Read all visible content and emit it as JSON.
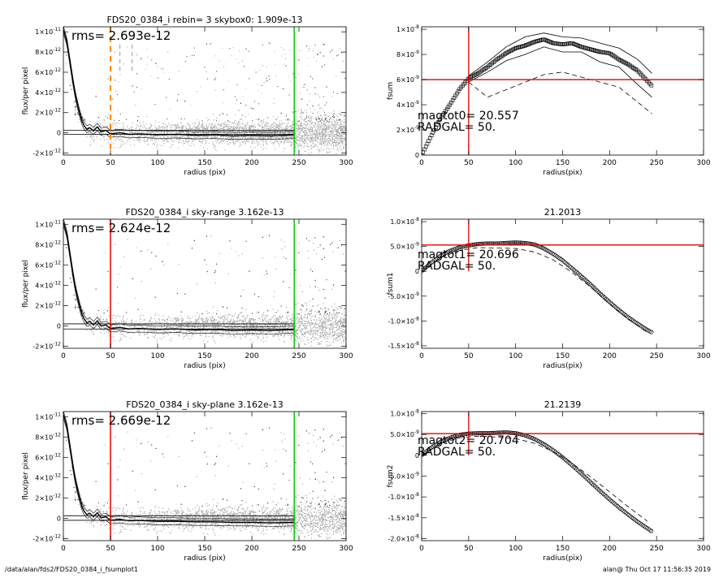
{
  "footer": {
    "left": "/data/alan/fds2/FDS20_0384_i_fsumplot1",
    "right": "alan@  Thu Oct 17 11:56:35 2019"
  },
  "colors": {
    "scatter": "#a8a8a8",
    "profile": "#000000",
    "radius_line": "#e00000",
    "orange_marker": "#ff8c00",
    "green_line": "#00c800",
    "red_line": "#e00000"
  },
  "chart_data": [
    {
      "type": "scatter",
      "title": "FDS20_0384_i rebin= 3    skybox0:  1.909e-13",
      "xlabel": "radius (pix)",
      "ylabel": "flux/per pixel",
      "xlim": [
        0,
        300
      ],
      "ylim": [
        -2.2e-12,
        1.05e-11
      ],
      "xticks": [
        0,
        50,
        100,
        150,
        200,
        250,
        300
      ],
      "yticks": [
        -2e-12,
        0,
        2e-12,
        4e-12,
        6e-12,
        8e-12,
        1e-11
      ],
      "ytick_labels": [
        [
          "-2×10",
          "-12"
        ],
        [
          "0",
          ""
        ],
        [
          "2×10",
          "-12"
        ],
        [
          "4×10",
          "-12"
        ],
        [
          "6×10",
          "-12"
        ],
        [
          "8×10",
          "-12"
        ],
        [
          "1×10",
          "-11"
        ]
      ],
      "annotation": "rms= 2.693e-12",
      "radius_line": {
        "x": 50,
        "style": "dashed-orange"
      },
      "green_line_x": 245,
      "gray_dashed_x": [
        60,
        73
      ],
      "hlines": [
        2.5e-13,
        -1.5e-13
      ],
      "profile": {
        "x": [
          0,
          2,
          4,
          6,
          8,
          10,
          12,
          14,
          16,
          18,
          20,
          22,
          25,
          28,
          32,
          36,
          40,
          45,
          50,
          60,
          70,
          80,
          100,
          120,
          140,
          160,
          180,
          200,
          220,
          245
        ],
        "y": [
          1.02e-11,
          9.6e-12,
          8.9e-12,
          7.6e-12,
          6.4e-12,
          5.2e-12,
          4.1e-12,
          3.2e-12,
          2.4e-12,
          1.7e-12,
          1.1e-12,
          7e-13,
          3.5e-13,
          5e-13,
          2e-13,
          6e-13,
          1e-13,
          2.5e-13,
          -1e-13,
          0.0,
          -1.5e-13,
          -1e-13,
          -2e-13,
          -1.5e-13,
          -2.5e-13,
          -2e-13,
          -3e-13,
          -2.5e-13,
          -3e-13,
          -2e-13
        ]
      }
    },
    {
      "type": "line",
      "title": "",
      "xlabel": "radius(pix)",
      "ylabel": "fsum",
      "xlim": [
        0,
        300
      ],
      "ylim": [
        0,
        1.02e-08
      ],
      "xticks": [
        0,
        50,
        100,
        150,
        200,
        250,
        300
      ],
      "yticks": [
        0,
        2e-09,
        4e-09,
        6e-09,
        8e-09,
        1e-08
      ],
      "ytick_labels": [
        [
          "0",
          ""
        ],
        [
          "2×10",
          "-9"
        ],
        [
          "4×10",
          "-9"
        ],
        [
          "6×10",
          "-9"
        ],
        [
          "8×10",
          "-9"
        ],
        [
          "1×10",
          "-8"
        ]
      ],
      "annotations": [
        "magtot0=  20.557",
        "RADGAL=      50."
      ],
      "cross": {
        "x": 50,
        "y": 6e-09
      },
      "series": [
        {
          "style": "squares",
          "x": [
            0,
            10,
            20,
            30,
            40,
            50,
            60,
            70,
            80,
            90,
            100,
            110,
            120,
            130,
            140,
            150,
            160,
            170,
            180,
            190,
            200,
            210,
            220,
            230,
            240,
            245
          ],
          "y": [
            0.0,
            1.5e-09,
            2.9e-09,
            4e-09,
            5.2e-09,
            6.1e-09,
            6.5e-09,
            7e-09,
            7.6e-09,
            8.1e-09,
            8.5e-09,
            8.7e-09,
            9e-09,
            9.2e-09,
            8.9e-09,
            8.8e-09,
            8.9e-09,
            8.6e-09,
            8.4e-09,
            8.2e-09,
            8.1e-09,
            7.6e-09,
            7.2e-09,
            6.7e-09,
            5.9e-09,
            5.5e-09
          ]
        },
        {
          "style": "solid",
          "x": [
            50,
            70,
            90,
            110,
            130,
            150,
            170,
            190,
            210,
            230,
            245
          ],
          "y": [
            6.3e-09,
            7.4e-09,
            8.6e-09,
            9.4e-09,
            9.7e-09,
            9.4e-09,
            9.3e-09,
            8.9e-09,
            8.5e-09,
            7.6e-09,
            6.5e-09
          ]
        },
        {
          "style": "solid",
          "x": [
            50,
            70,
            90,
            110,
            130,
            150,
            170,
            190,
            210,
            230,
            245
          ],
          "y": [
            5.8e-09,
            6.6e-09,
            7.5e-09,
            8e-09,
            8.6e-09,
            8.2e-09,
            8.2e-09,
            7.4e-09,
            7e-09,
            5.6e-09,
            4.6e-09
          ]
        },
        {
          "style": "dashed",
          "x": [
            50,
            70,
            90,
            110,
            130,
            150,
            170,
            190,
            210,
            230,
            245
          ],
          "y": [
            5.8e-09,
            4.6e-09,
            5.2e-09,
            5.8e-09,
            6.4e-09,
            6.6e-09,
            6.2e-09,
            5.8e-09,
            5.4e-09,
            4.2e-09,
            3.3e-09
          ]
        }
      ]
    },
    {
      "type": "scatter",
      "title": "FDS20_0384_i sky-range  3.162e-13",
      "xlabel": "radius (pix)",
      "ylabel": "flux/per pixel",
      "xlim": [
        0,
        300
      ],
      "ylim": [
        -2.2e-12,
        1.05e-11
      ],
      "xticks": [
        0,
        50,
        100,
        150,
        200,
        250,
        300
      ],
      "yticks": [
        -2e-12,
        0,
        2e-12,
        4e-12,
        6e-12,
        8e-12,
        1e-11
      ],
      "ytick_labels": [
        [
          "-2×10",
          "-12"
        ],
        [
          "0",
          ""
        ],
        [
          "2×10",
          "-12"
        ],
        [
          "4×10",
          "-12"
        ],
        [
          "6×10",
          "-12"
        ],
        [
          "8×10",
          "-12"
        ],
        [
          "1×10",
          "-11"
        ]
      ],
      "annotation": "rms= 2.624e-12",
      "radius_line": {
        "x": 50,
        "style": "solid-red"
      },
      "green_line_x": 245,
      "hlines": [
        2e-13,
        -3e-13
      ],
      "profile": {
        "x": [
          0,
          2,
          4,
          6,
          8,
          10,
          12,
          14,
          16,
          18,
          20,
          22,
          25,
          28,
          32,
          36,
          40,
          45,
          50,
          60,
          70,
          80,
          100,
          120,
          140,
          160,
          180,
          200,
          220,
          245
        ],
        "y": [
          1.02e-11,
          9.6e-12,
          8.9e-12,
          7.6e-12,
          6.4e-12,
          5.2e-12,
          4.1e-12,
          3.2e-12,
          2.4e-12,
          1.7e-12,
          1.1e-12,
          7e-13,
          3e-13,
          4.5e-13,
          1e-13,
          5e-13,
          0.0,
          1e-13,
          -2.5e-13,
          -1.5e-13,
          -3e-13,
          -2.5e-13,
          -3.5e-13,
          -3e-13,
          -4e-13,
          -3.5e-13,
          -4.5e-13,
          -4e-13,
          -4.5e-13,
          -3.5e-13
        ]
      }
    },
    {
      "type": "line",
      "title": "21.2013",
      "xlabel": "radius(pix)",
      "ylabel": "fsum1",
      "xlim": [
        0,
        300
      ],
      "ylim": [
        -1.55e-08,
        1.05e-08
      ],
      "xticks": [
        0,
        50,
        100,
        150,
        200,
        250,
        300
      ],
      "yticks": [
        -1.5e-08,
        -1e-08,
        -5e-09,
        0,
        5e-09,
        1e-08
      ],
      "ytick_labels": [
        [
          "-1.5×10",
          "-8"
        ],
        [
          "-1.0×10",
          "-8"
        ],
        [
          "-5.0×10",
          "-9"
        ],
        [
          "0",
          ""
        ],
        [
          "5.0×10",
          "-9"
        ],
        [
          "1.0×10",
          "-8"
        ]
      ],
      "annotations": [
        "magtot1=  20.696",
        "RADGAL=      50."
      ],
      "cross": {
        "x": 50,
        "y": 5.3e-09
      },
      "series": [
        {
          "style": "circles",
          "x": [
            0,
            10,
            20,
            30,
            40,
            50,
            60,
            70,
            80,
            90,
            100,
            110,
            120,
            130,
            140,
            150,
            160,
            170,
            180,
            190,
            200,
            210,
            220,
            230,
            240,
            245
          ],
          "y": [
            0.0,
            1.7e-09,
            3.1e-09,
            4.1e-09,
            4.8e-09,
            5.2e-09,
            5.5e-09,
            5.6e-09,
            5.6e-09,
            5.7e-09,
            5.8e-09,
            5.7e-09,
            5.4e-09,
            4.6e-09,
            3.5e-09,
            2.2e-09,
            6e-10,
            -1e-09,
            -2.7e-09,
            -4.5e-09,
            -6.2e-09,
            -7.8e-09,
            -9.3e-09,
            -1.06e-08,
            -1.18e-08,
            -1.23e-08
          ]
        },
        {
          "style": "dashed",
          "x": [
            0,
            20,
            40,
            60,
            80,
            100,
            120,
            140,
            160,
            180,
            200,
            220,
            240
          ],
          "y": [
            0.0,
            2.7e-09,
            4.2e-09,
            4.8e-09,
            4.7e-09,
            4.6e-09,
            3.9e-09,
            2.3e-09,
            -2e-10,
            -3.2e-09,
            -6.6e-09,
            -9.6e-09,
            -1.23e-08
          ]
        }
      ]
    },
    {
      "type": "scatter",
      "title": "FDS20_0384_i sky-plane  3.162e-13",
      "xlabel": "radius (pix)",
      "ylabel": "flux/per pixel",
      "xlim": [
        0,
        300
      ],
      "ylim": [
        -2.2e-12,
        1.05e-11
      ],
      "xticks": [
        0,
        50,
        100,
        150,
        200,
        250,
        300
      ],
      "yticks": [
        -2e-12,
        0,
        2e-12,
        4e-12,
        6e-12,
        8e-12,
        1e-11
      ],
      "ytick_labels": [
        [
          "-2×10",
          "-12"
        ],
        [
          "0",
          ""
        ],
        [
          "2×10",
          "-12"
        ],
        [
          "4×10",
          "-12"
        ],
        [
          "6×10",
          "-12"
        ],
        [
          "8×10",
          "-12"
        ],
        [
          "1×10",
          "-11"
        ]
      ],
      "annotation": "rms= 2.669e-12",
      "radius_line": {
        "x": 50,
        "style": "solid-red"
      },
      "green_line_x": 245,
      "hlines": [
        2.5e-13,
        -2e-13
      ],
      "profile": {
        "x": [
          0,
          2,
          4,
          6,
          8,
          10,
          12,
          14,
          16,
          18,
          20,
          22,
          25,
          28,
          32,
          36,
          40,
          45,
          50,
          60,
          70,
          80,
          100,
          120,
          140,
          160,
          180,
          200,
          220,
          245
        ],
        "y": [
          1.02e-11,
          9.6e-12,
          8.9e-12,
          7.6e-12,
          6.4e-12,
          5.2e-12,
          4.1e-12,
          3.2e-12,
          2.4e-12,
          1.7e-12,
          1.1e-12,
          7e-13,
          3.5e-13,
          5e-13,
          1.5e-13,
          5.5e-13,
          5e-14,
          1.5e-13,
          -2e-13,
          -1e-13,
          -2.5e-13,
          -2e-13,
          -3e-13,
          -3e-13,
          -3.5e-13,
          -3.5e-13,
          -4e-13,
          -4e-13,
          -4.5e-13,
          -4e-13
        ]
      }
    },
    {
      "type": "line",
      "title": "21.2139",
      "xlabel": "radius(pix)",
      "ylabel": "fsum2",
      "xlim": [
        0,
        300
      ],
      "ylim": [
        -2.05e-08,
        1.05e-08
      ],
      "xticks": [
        0,
        50,
        100,
        150,
        200,
        250,
        300
      ],
      "yticks": [
        -2e-08,
        -1.5e-08,
        -1e-08,
        -5e-09,
        0,
        5e-09,
        1e-08
      ],
      "ytick_labels": [
        [
          "-2.0×10",
          "-8"
        ],
        [
          "-1.5×10",
          "-8"
        ],
        [
          "-1.0×10",
          "-8"
        ],
        [
          "-5.0×10",
          "-9"
        ],
        [
          "0",
          ""
        ],
        [
          "5.0×10",
          "-9"
        ],
        [
          "1.0×10",
          "-8"
        ]
      ],
      "annotations": [
        "magtot2=  20.704",
        "RADGAL=      50."
      ],
      "cross": {
        "x": 50,
        "y": 5.2e-09
      },
      "series": [
        {
          "style": "circles",
          "x": [
            0,
            10,
            20,
            30,
            40,
            50,
            60,
            70,
            80,
            90,
            100,
            110,
            120,
            130,
            140,
            150,
            160,
            170,
            180,
            190,
            200,
            210,
            220,
            230,
            240,
            245
          ],
          "y": [
            0.0,
            1.8e-09,
            3.2e-09,
            4.2e-09,
            4.9e-09,
            5.2e-09,
            5.3e-09,
            5.3e-09,
            5.4e-09,
            5.5e-09,
            5.3e-09,
            4.8e-09,
            3.9e-09,
            2.7e-09,
            1.2e-09,
            -5e-10,
            -2.4e-09,
            -4.4e-09,
            -6.5e-09,
            -8.6e-09,
            -1.06e-08,
            -1.25e-08,
            -1.43e-08,
            -1.6e-08,
            -1.75e-08,
            -1.83e-08
          ]
        },
        {
          "style": "dashed",
          "x": [
            0,
            20,
            40,
            60,
            80,
            100,
            120,
            140,
            160,
            180,
            200,
            220,
            240
          ],
          "y": [
            0.0,
            2.8e-09,
            4.2e-09,
            4.6e-09,
            4.4e-09,
            4e-09,
            2.9e-09,
            9e-10,
            -1.9e-09,
            -5.2e-09,
            -8.8e-09,
            -1.24e-08,
            -1.58e-08
          ]
        }
      ]
    }
  ]
}
